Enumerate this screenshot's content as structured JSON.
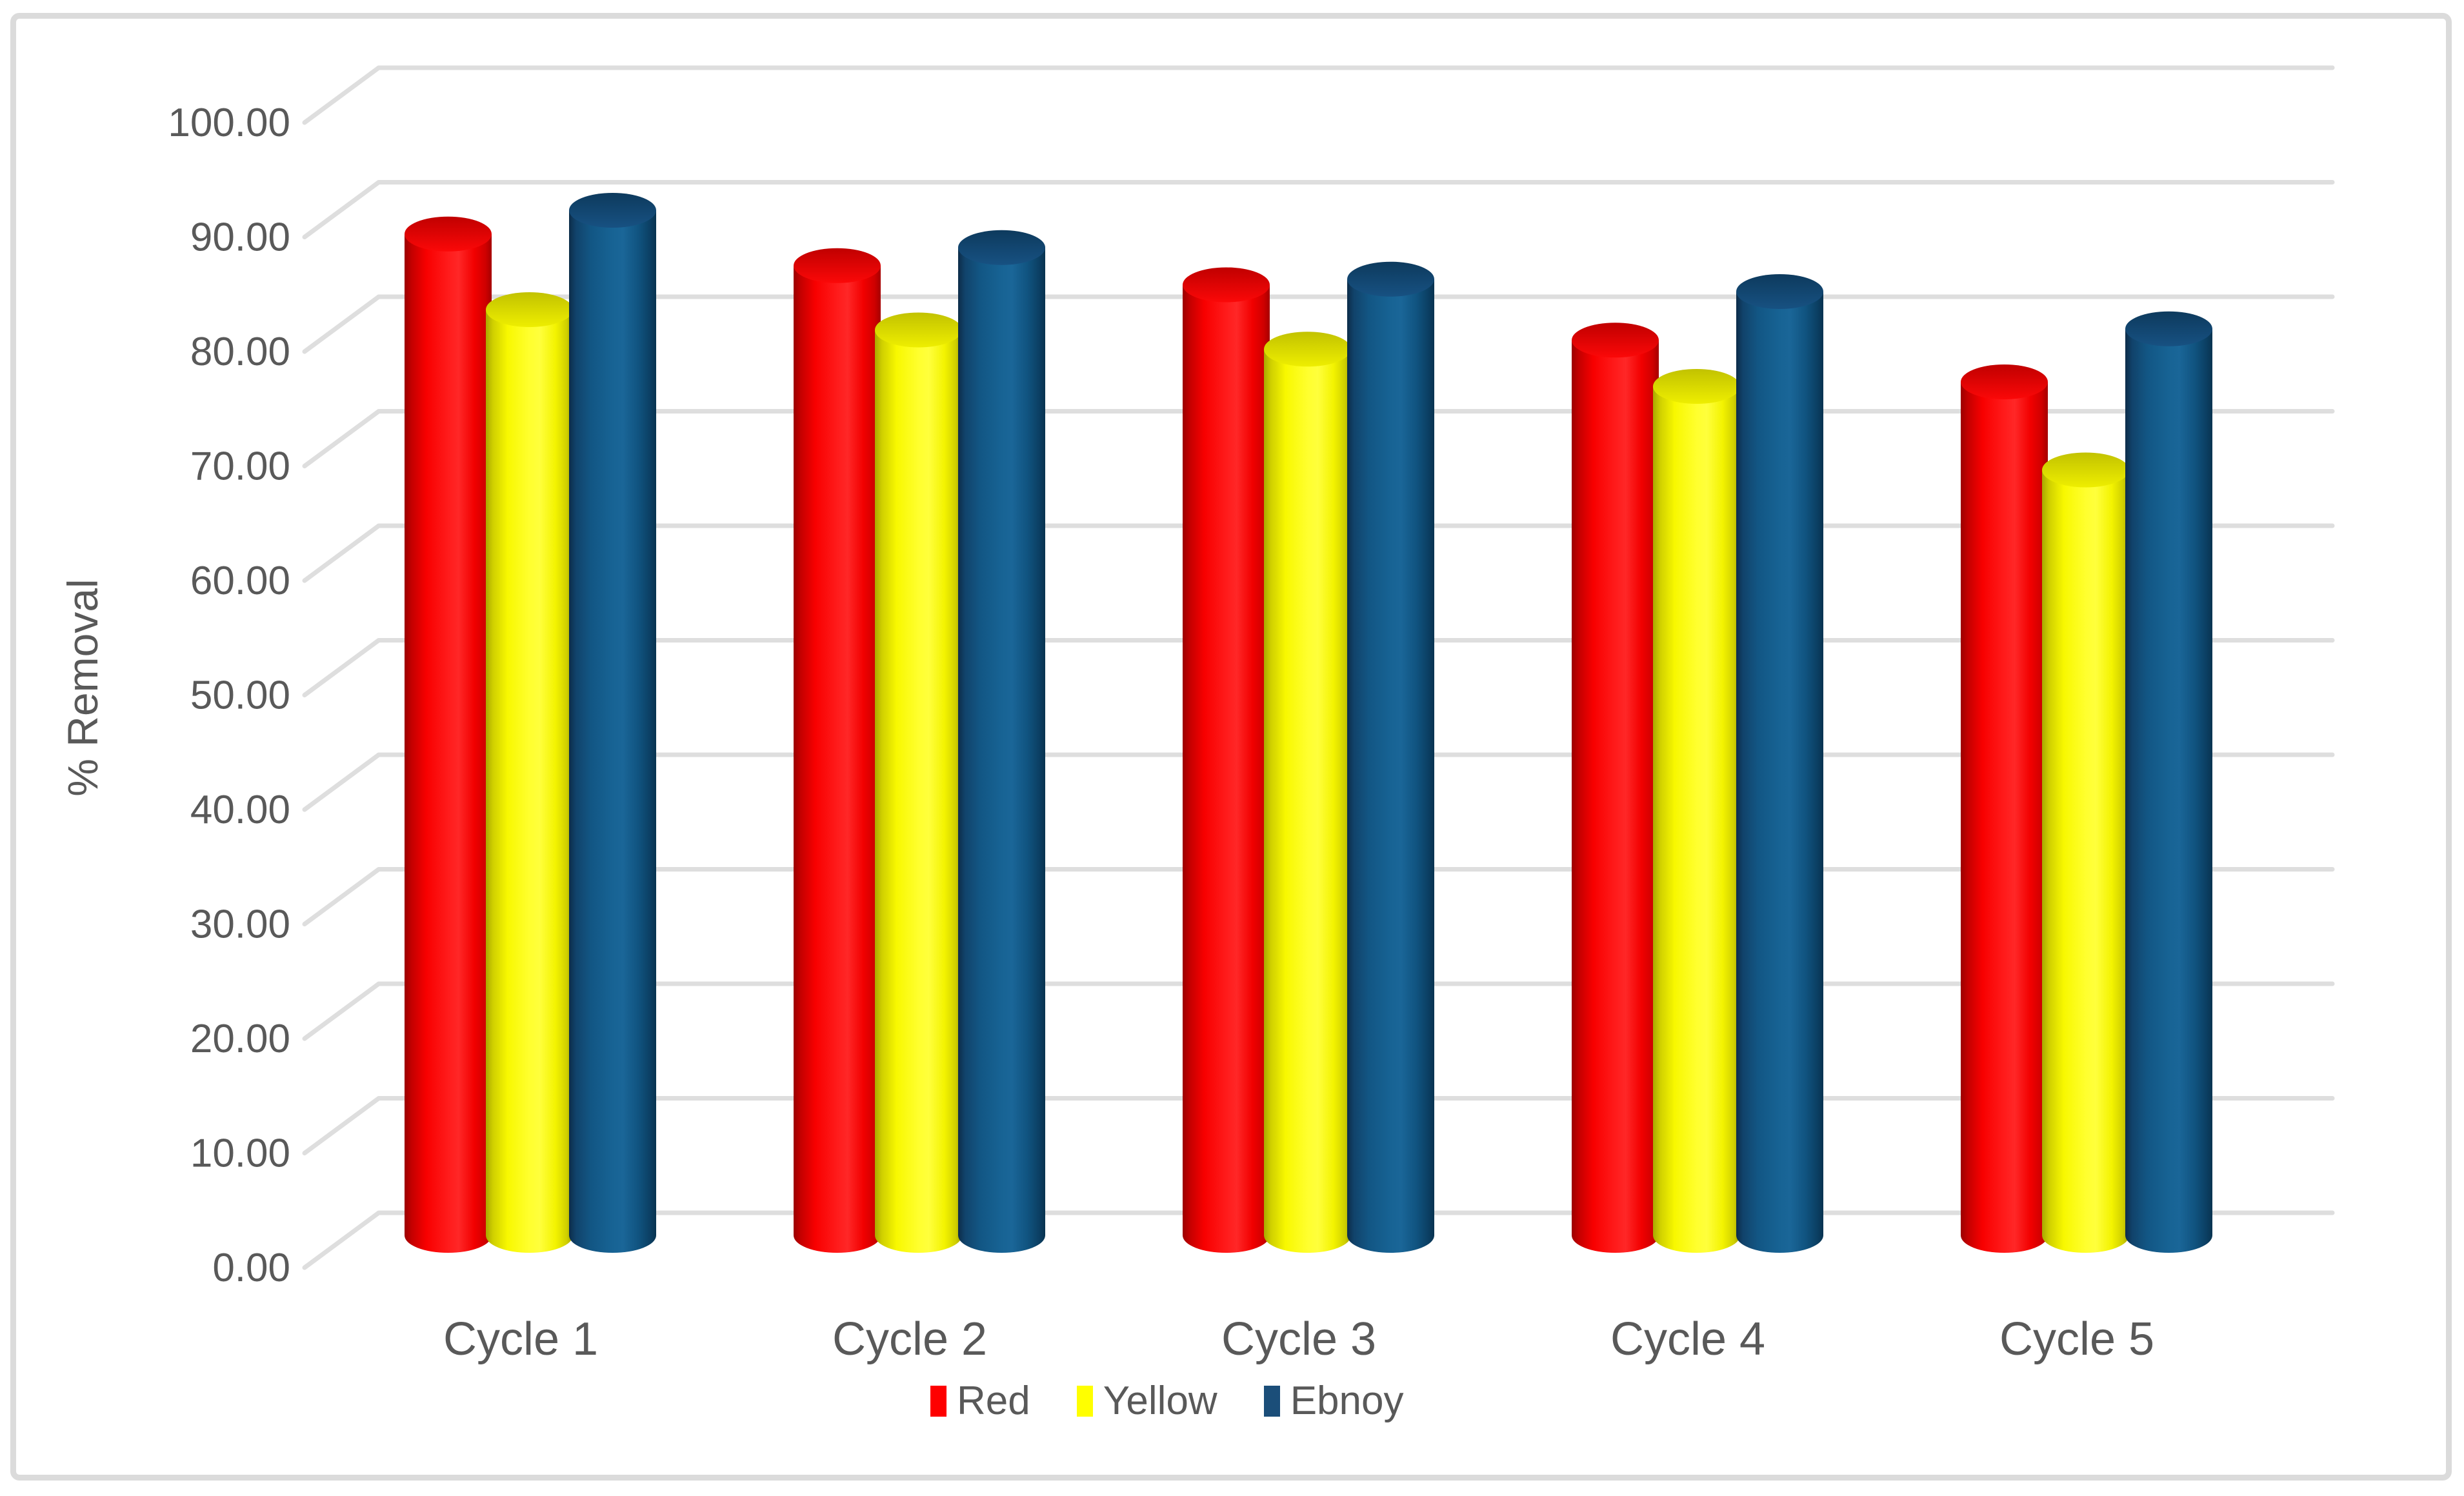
{
  "frame": {
    "border_color": "#dbdbdb",
    "background": "#ffffff"
  },
  "chart_data": {
    "type": "bar",
    "subtype": "3d-cylinder-clustered",
    "title": "",
    "xlabel": "",
    "ylabel": "% Removal",
    "ylim": [
      0,
      100
    ],
    "ytick_step": 10,
    "ytick_format": "two-decimal",
    "yticks": [
      "100.00",
      "90.00",
      "80.00",
      "70.00",
      "60.00",
      "50.00",
      "40.00",
      "30.00",
      "20.00",
      "10.00",
      "0.00"
    ],
    "categories": [
      "Cycle 1",
      "Cycle 2",
      "Cycle 3",
      "Cycle 4",
      "Cycle 5"
    ],
    "series": [
      {
        "name": "Red",
        "color": "#fe0000",
        "values": [
          88.7,
          85.9,
          84.2,
          79.3,
          75.6
        ]
      },
      {
        "name": "Yellow",
        "color": "#ffff00",
        "values": [
          82.0,
          80.2,
          78.5,
          75.2,
          67.8
        ]
      },
      {
        "name": "Ebnoy",
        "color": "#1b4e79",
        "values": [
          90.8,
          87.5,
          84.7,
          83.6,
          80.3
        ]
      }
    ],
    "grid": true,
    "gridline_color": "#dedede",
    "text_color": "#595959",
    "legend_position": "bottom"
  }
}
